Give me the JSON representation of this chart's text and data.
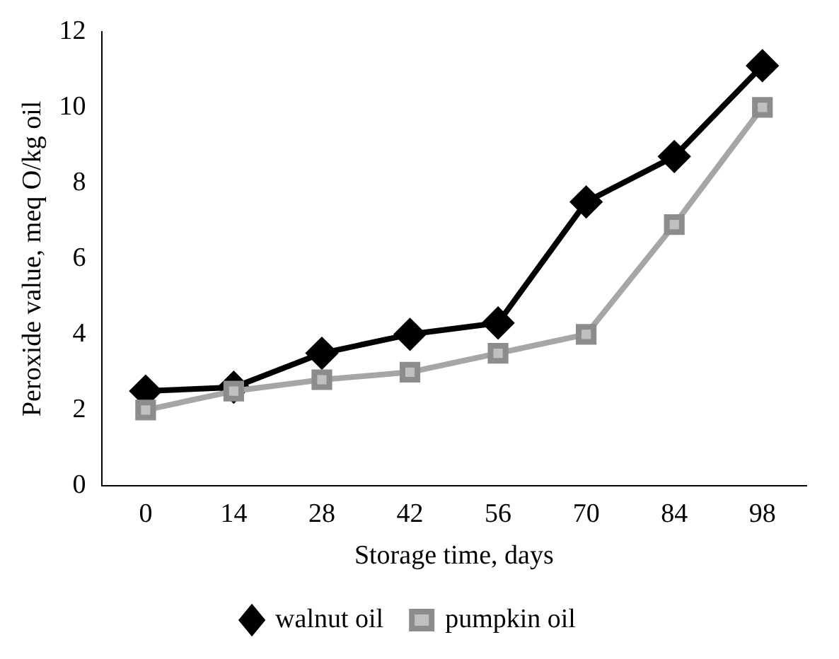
{
  "chart_data": {
    "type": "line",
    "xlabel": "Storage time, days",
    "ylabel": "Peroxide value, meq O/kg oil",
    "categories": [
      "0",
      "14",
      "28",
      "42",
      "56",
      "70",
      "84",
      "98"
    ],
    "series": [
      {
        "name": "walnut oil",
        "color": "#000000",
        "marker": "diamond",
        "values": [
          2.5,
          2.6,
          3.5,
          4.0,
          4.3,
          7.5,
          8.7,
          11.1
        ]
      },
      {
        "name": "pumpkin oil",
        "color": "#a6a6a6",
        "marker": "square",
        "values": [
          2.0,
          2.5,
          2.8,
          3.0,
          3.5,
          4.0,
          6.9,
          10.0
        ]
      }
    ],
    "ylim": [
      0,
      12
    ],
    "yticks": [
      0,
      2,
      4,
      6,
      8,
      10,
      12
    ],
    "grid": false,
    "legend": "bottom",
    "line_style": "solid"
  }
}
